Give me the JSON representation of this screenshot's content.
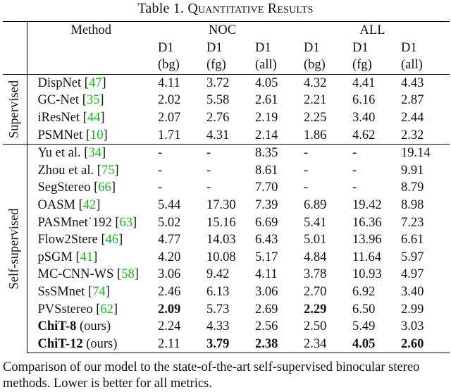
{
  "caption": {
    "label": "Table 1.",
    "title": "Quantitative Results"
  },
  "header": {
    "method": "Method",
    "noc": "NOC",
    "all": "ALL",
    "metric": "D1",
    "subs": [
      "(bg)",
      "(fg)",
      "(all)",
      "(bg)",
      "(fg)",
      "(all)"
    ]
  },
  "groups": {
    "supervised": "Supervised",
    "self_supervised": "Self-supervised"
  },
  "rows": [
    {
      "name": "DispNet",
      "ref": "47",
      "suffix": "",
      "vals": [
        "4.11",
        "3.72",
        "4.05",
        "4.32",
        "4.41",
        "4.43"
      ],
      "bold": []
    },
    {
      "name": "GC-Net",
      "ref": "35",
      "suffix": "",
      "vals": [
        "2.02",
        "5.58",
        "2.61",
        "2.21",
        "6.16",
        "2.87"
      ],
      "bold": []
    },
    {
      "name": "iResNet",
      "ref": "44",
      "suffix": "",
      "vals": [
        "2.07",
        "2.76",
        "2.19",
        "2.25",
        "3.40",
        "2.44"
      ],
      "bold": []
    },
    {
      "name": "PSMNet",
      "ref": "10",
      "suffix": "",
      "vals": [
        "1.71",
        "4.31",
        "2.14",
        "1.86",
        "4.62",
        "2.32"
      ],
      "bold": []
    },
    {
      "name": "Yu et al.",
      "ref": "34",
      "suffix": "",
      "vals": [
        "-",
        "-",
        "8.35",
        "-",
        "-",
        "19.14"
      ],
      "bold": []
    },
    {
      "name": "Zhou et al.",
      "ref": "75",
      "suffix": "",
      "vals": [
        "-",
        "-",
        "8.61",
        "-",
        "-",
        "9.91"
      ],
      "bold": []
    },
    {
      "name": "SegStereo",
      "ref": "66",
      "suffix": "",
      "vals": [
        "-",
        "-",
        "7.70",
        "-",
        "-",
        "8.79"
      ],
      "bold": []
    },
    {
      "name": "OASM",
      "ref": "42",
      "suffix": "",
      "vals": [
        "5.44",
        "17.30",
        "7.39",
        "6.89",
        "19.42",
        "8.98"
      ],
      "bold": []
    },
    {
      "name": "PASMnet˙192",
      "ref": "63",
      "suffix": "",
      "vals": [
        "5.02",
        "15.16",
        "6.69",
        "5.41",
        "16.36",
        "7.23"
      ],
      "bold": []
    },
    {
      "name": "Flow2Stere",
      "ref": "46",
      "suffix": "",
      "vals": [
        "4.77",
        "14.03",
        "6.43",
        "5.01",
        "13.96",
        "6.61"
      ],
      "bold": []
    },
    {
      "name": "pSGM",
      "ref": "41",
      "suffix": "",
      "vals": [
        "4.20",
        "10.08",
        "5.17",
        "4.84",
        "11.64",
        "5.97"
      ],
      "bold": []
    },
    {
      "name": "MC-CNN-WS",
      "ref": "58",
      "suffix": "",
      "vals": [
        "3.06",
        "9.42",
        "4.11",
        "3.78",
        "10.93",
        "4.97"
      ],
      "bold": []
    },
    {
      "name": "SsSMnet",
      "ref": "74",
      "suffix": "",
      "vals": [
        "2.46",
        "6.13",
        "3.06",
        "2.70",
        "6.92",
        "3.40"
      ],
      "bold": []
    },
    {
      "name": "PVSstereo",
      "ref": "62",
      "suffix": "",
      "vals": [
        "2.09",
        "5.73",
        "2.69",
        "2.29",
        "6.50",
        "2.99"
      ],
      "bold": [
        0,
        3
      ]
    },
    {
      "name": "ChiT-8",
      "ref": "",
      "suffix": "(ours)",
      "vals": [
        "2.24",
        "4.33",
        "2.56",
        "2.50",
        "5.49",
        "3.03"
      ],
      "bold": []
    },
    {
      "name": "ChiT-12",
      "ref": "",
      "suffix": "(ours)",
      "vals": [
        "2.11",
        "3.79",
        "2.38",
        "2.34",
        "4.05",
        "2.60"
      ],
      "bold": [
        1,
        2,
        4,
        5
      ]
    }
  ],
  "footnote": "Comparison of our model to the state-of-the-art self-supervised binocular stereo methods. Lower is better for all metrics."
}
